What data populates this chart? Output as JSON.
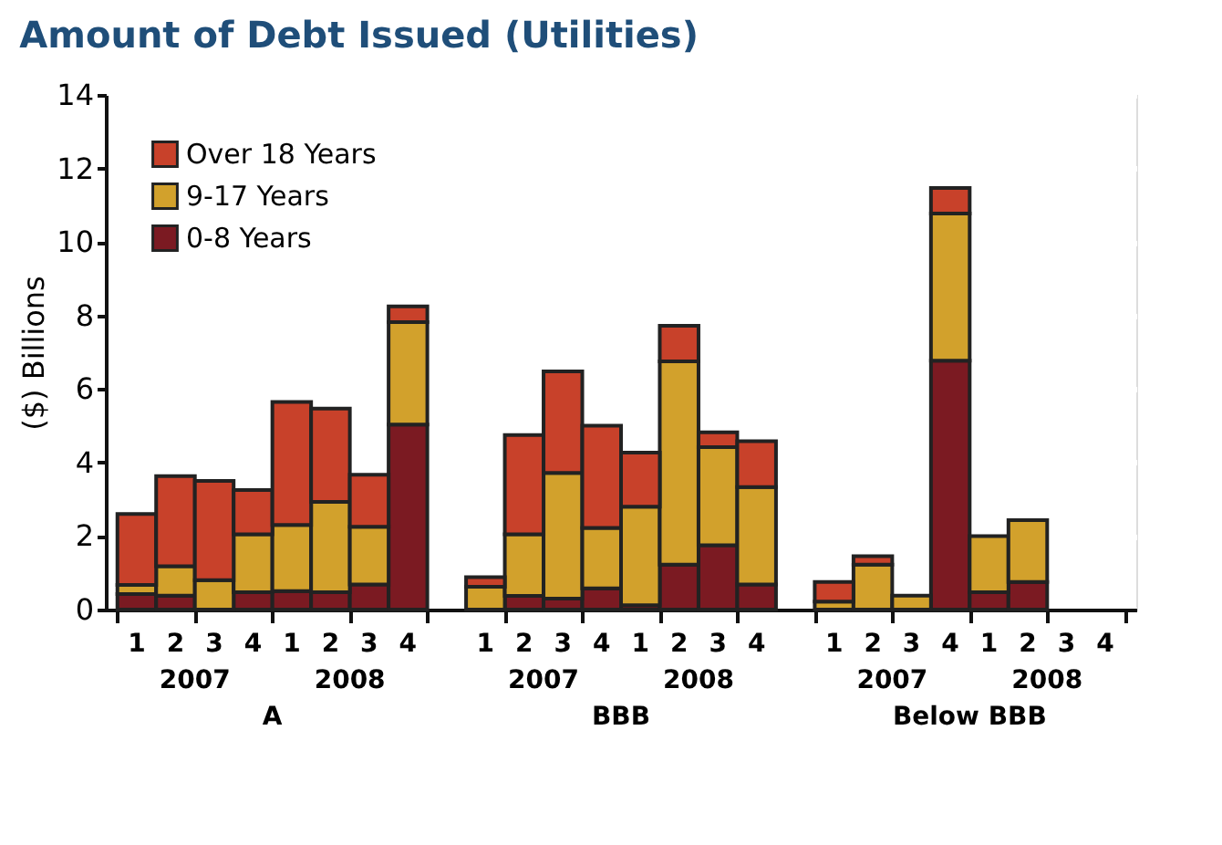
{
  "chart_data": {
    "type": "bar",
    "stacked": true,
    "title": "Amount of Debt Issued (Utilities)",
    "ylabel": "($) Billions",
    "categories": [
      "1",
      "2",
      "3",
      "4",
      "1",
      "2",
      "3",
      "4",
      "1",
      "2",
      "3",
      "4",
      "1",
      "2",
      "3",
      "4",
      "1",
      "2",
      "3",
      "4",
      "1",
      "2",
      "3",
      "4"
    ],
    "annotations": [
      "2007",
      "2008",
      "A",
      "2007",
      "2008",
      "BBB",
      "2007",
      "2008",
      "Below BBB"
    ],
    "series": [
      {
        "name": "0-8 Years",
        "color": "#7b1a22",
        "values": [
          0.42,
          0.38,
          0,
          0.47,
          0.5,
          0.47,
          0.68,
          5.03,
          0,
          0.37,
          0.3,
          0.58,
          0.12,
          1.22,
          1.75,
          0.68,
          0,
          0,
          null,
          6.77,
          0.47,
          0.75,
          null,
          null
        ]
      },
      {
        "name": "9-17 Years",
        "color": "#d2a12c",
        "values": [
          0.25,
          0.8,
          0.8,
          1.58,
          1.8,
          2.46,
          1.57,
          2.79,
          0.62,
          1.68,
          3.42,
          1.64,
          2.68,
          5.53,
          2.67,
          2.65,
          0.22,
          1.22,
          0.38,
          4.0,
          1.53,
          1.68,
          null,
          null
        ]
      },
      {
        "name": "Over 18 Years",
        "color": "#c8412a",
        "values": [
          1.93,
          2.45,
          2.7,
          1.2,
          3.35,
          2.54,
          1.42,
          0.43,
          0.26,
          2.7,
          2.76,
          2.78,
          1.47,
          0.97,
          0.4,
          1.25,
          0.53,
          0.23,
          0,
          0.7,
          0,
          0,
          null,
          null
        ]
      }
    ],
    "ylim": [
      0,
      14
    ],
    "yticks": [
      0,
      2,
      4,
      6,
      8,
      10,
      12,
      14
    ],
    "grid": "y",
    "legend": "top left"
  }
}
